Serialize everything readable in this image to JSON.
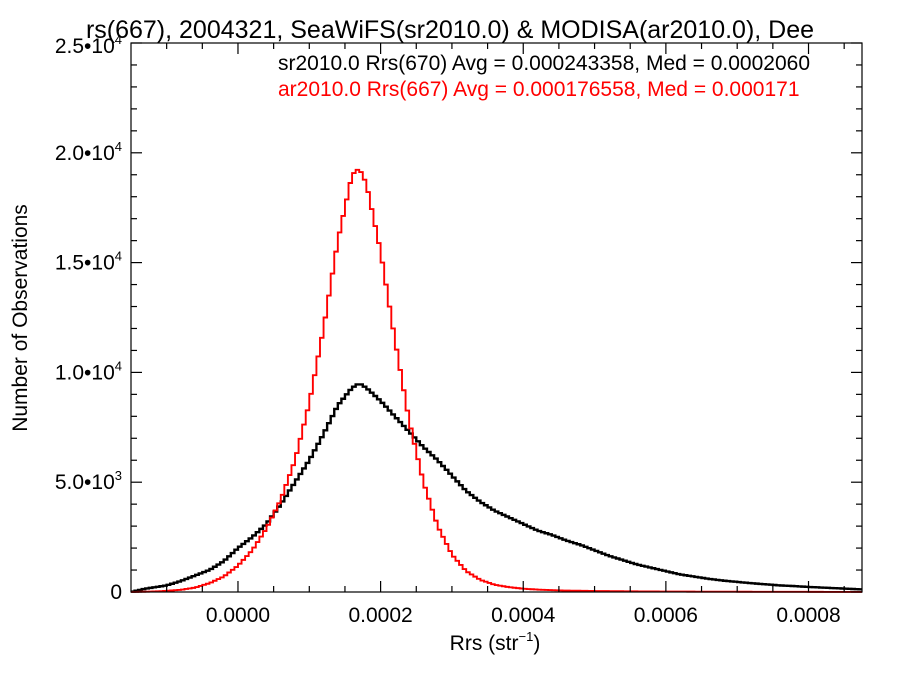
{
  "chart_data": {
    "type": "histogram",
    "title": "rs(667), 2004321, SeaWiFS(sr2010.0) & MODISA(ar2010.0), Dee",
    "xlabel": "Rrs (str",
    "xlabel_sup": "−1",
    "xlabel_tail": ")",
    "ylabel": "Number of Observations",
    "xlim": [
      -0.00015,
      0.000875
    ],
    "ylim": [
      0,
      25000
    ],
    "x_ticks": [
      0.0,
      0.0002,
      0.0004,
      0.0006,
      0.0008
    ],
    "x_tick_labels": [
      "0.0000",
      "0.0002",
      "0.0004",
      "0.0006",
      "0.0008"
    ],
    "y_ticks": [
      0,
      5000,
      10000,
      15000,
      20000,
      25000
    ],
    "y_tick_labels": [
      {
        "mant": "0",
        "exp": ""
      },
      {
        "mant": "5.0•10",
        "exp": "3"
      },
      {
        "mant": "1.0•10",
        "exp": "4"
      },
      {
        "mant": "1.5•10",
        "exp": "4"
      },
      {
        "mant": "2.0•10",
        "exp": "4"
      },
      {
        "mant": "2.5•10",
        "exp": "4"
      }
    ],
    "grid": false,
    "bin_width": 5e-06,
    "series": [
      {
        "label": "sr2010.0 Rrs(670) Avg = 0.000243358, Med = 0.0002060",
        "color": "#000000",
        "points": [
          [
            -0.00015,
            0
          ],
          [
            -0.00013,
            150
          ],
          [
            -0.0001,
            300
          ],
          [
            -8e-05,
            500
          ],
          [
            -6e-05,
            750
          ],
          [
            -4e-05,
            1000
          ],
          [
            -2e-05,
            1400
          ],
          [
            0.0,
            2000
          ],
          [
            2e-05,
            2500
          ],
          [
            4e-05,
            3100
          ],
          [
            6e-05,
            4000
          ],
          [
            8e-05,
            5000
          ],
          [
            0.0001,
            6000
          ],
          [
            0.00012,
            7200
          ],
          [
            0.00014,
            8500
          ],
          [
            0.00016,
            9300
          ],
          [
            0.00017,
            9500
          ],
          [
            0.00018,
            9300
          ],
          [
            0.0002,
            8700
          ],
          [
            0.00022,
            8000
          ],
          [
            0.00024,
            7300
          ],
          [
            0.00026,
            6600
          ],
          [
            0.00028,
            6000
          ],
          [
            0.0003,
            5300
          ],
          [
            0.00032,
            4600
          ],
          [
            0.00034,
            4100
          ],
          [
            0.00036,
            3700
          ],
          [
            0.00038,
            3400
          ],
          [
            0.0004,
            3100
          ],
          [
            0.00042,
            2800
          ],
          [
            0.00044,
            2600
          ],
          [
            0.00046,
            2350
          ],
          [
            0.00048,
            2150
          ],
          [
            0.0005,
            1900
          ],
          [
            0.00052,
            1650
          ],
          [
            0.00054,
            1450
          ],
          [
            0.00056,
            1250
          ],
          [
            0.00058,
            1100
          ],
          [
            0.0006,
            950
          ],
          [
            0.00062,
            800
          ],
          [
            0.00064,
            700
          ],
          [
            0.00066,
            600
          ],
          [
            0.00068,
            520
          ],
          [
            0.0007,
            460
          ],
          [
            0.00072,
            400
          ],
          [
            0.00074,
            350
          ],
          [
            0.00076,
            300
          ],
          [
            0.00078,
            270
          ],
          [
            0.0008,
            230
          ],
          [
            0.00082,
            200
          ],
          [
            0.00084,
            170
          ],
          [
            0.00086,
            140
          ],
          [
            0.000875,
            120
          ]
        ]
      },
      {
        "label": "ar2010.0 Rrs(667) Avg = 0.000176558, Med = 0.000171",
        "color": "#ff0000",
        "points": [
          [
            -0.00015,
            0
          ],
          [
            -0.00012,
            20
          ],
          [
            -0.0001,
            50
          ],
          [
            -8e-05,
            100
          ],
          [
            -6e-05,
            200
          ],
          [
            -4e-05,
            400
          ],
          [
            -2e-05,
            700
          ],
          [
            0.0,
            1200
          ],
          [
            2e-05,
            1900
          ],
          [
            4e-05,
            2900
          ],
          [
            6e-05,
            4200
          ],
          [
            8e-05,
            6000
          ],
          [
            0.0001,
            8600
          ],
          [
            0.00012,
            12000
          ],
          [
            0.00014,
            16000
          ],
          [
            0.00016,
            19000
          ],
          [
            0.00017,
            19300
          ],
          [
            0.00018,
            18600
          ],
          [
            0.0002,
            15500
          ],
          [
            0.00022,
            11500
          ],
          [
            0.00024,
            7800
          ],
          [
            0.00026,
            5000
          ],
          [
            0.00028,
            3000
          ],
          [
            0.0003,
            1700
          ],
          [
            0.00032,
            950
          ],
          [
            0.00034,
            550
          ],
          [
            0.00036,
            330
          ],
          [
            0.00038,
            220
          ],
          [
            0.0004,
            150
          ],
          [
            0.00042,
            110
          ],
          [
            0.00044,
            85
          ],
          [
            0.00046,
            65
          ],
          [
            0.0005,
            45
          ],
          [
            0.00055,
            30
          ],
          [
            0.0006,
            20
          ],
          [
            0.0007,
            12
          ],
          [
            0.0008,
            6
          ],
          [
            0.000875,
            3
          ]
        ]
      }
    ]
  }
}
